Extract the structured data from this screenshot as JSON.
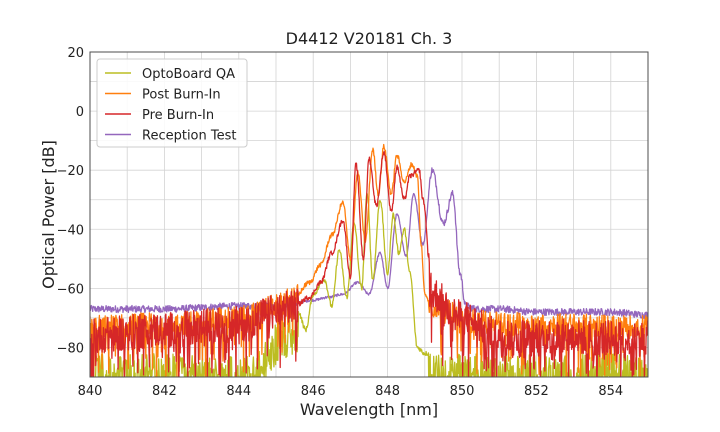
{
  "chart_data": {
    "type": "line",
    "title": "D4412 V20181 Ch. 3",
    "xlabel": "Wavelength [nm]",
    "ylabel": "Optical Power [dB]",
    "xlim": [
      840,
      855
    ],
    "ylim": [
      -90,
      20
    ],
    "xticks": [
      840,
      842,
      844,
      846,
      848,
      850,
      852,
      854
    ],
    "yticks": [
      20,
      0,
      -20,
      -40,
      -60,
      -80
    ],
    "xtick_labels": [
      "840",
      "842",
      "844",
      "846",
      "848",
      "850",
      "852",
      "854"
    ],
    "ytick_labels": [
      "20",
      "0",
      "−20",
      "−40",
      "−60",
      "−80"
    ],
    "grid": true,
    "legend_position": "top-left",
    "series": [
      {
        "name": "OptoBoard QA",
        "color": "#bcbd22",
        "noise_floor": -80,
        "peaks": [
          [
            845.8,
            -70
          ],
          [
            846.3,
            -57
          ],
          [
            846.7,
            -47
          ],
          [
            847.1,
            -38
          ],
          [
            847.45,
            -28
          ],
          [
            847.8,
            -30
          ],
          [
            848.15,
            -35
          ],
          [
            848.45,
            -40
          ]
        ],
        "x": [
          840,
          844.3,
          845.2,
          845.6,
          845.8,
          846.0,
          846.3,
          846.5,
          846.7,
          846.9,
          847.1,
          847.3,
          847.45,
          847.6,
          847.8,
          848.0,
          848.15,
          848.3,
          848.45,
          848.6,
          848.8,
          849.0,
          855
        ],
        "y": [
          -82,
          -82,
          -70,
          -68,
          -74,
          -62,
          -57,
          -66,
          -47,
          -63,
          -38,
          -60,
          -28,
          -57,
          -30,
          -55,
          -35,
          -48,
          -40,
          -55,
          -80,
          -82,
          -82
        ]
      },
      {
        "name": "Post Burn-In",
        "color": "#ff7f0e",
        "x": [
          840,
          842,
          844,
          845,
          845.5,
          845.9,
          846.2,
          846.5,
          846.8,
          847.0,
          847.2,
          847.4,
          847.6,
          847.75,
          847.9,
          848.1,
          848.25,
          848.45,
          848.65,
          848.8,
          848.9,
          849.0,
          849.2,
          849.6,
          850.2,
          851,
          855
        ],
        "y": [
          -73,
          -72,
          -70,
          -66,
          -63,
          -58,
          -52,
          -42,
          -31,
          -50,
          -21,
          -44,
          -13,
          -28,
          -12,
          -28,
          -15,
          -24,
          -18,
          -22,
          -45,
          -62,
          -66,
          -68,
          -71,
          -72,
          -73
        ]
      },
      {
        "name": "Pre Burn-In",
        "color": "#d62728",
        "x": [
          840,
          842,
          844,
          845,
          845.5,
          845.9,
          846.2,
          846.5,
          846.8,
          847.0,
          847.15,
          847.35,
          847.5,
          847.7,
          847.9,
          848.1,
          848.25,
          848.45,
          848.6,
          848.85,
          848.95,
          849.2,
          850,
          851,
          855
        ],
        "y": [
          -76,
          -74,
          -72,
          -68,
          -66,
          -63,
          -58,
          -48,
          -37,
          -56,
          -18,
          -50,
          -16,
          -32,
          -14,
          -34,
          -19,
          -30,
          -22,
          -20,
          -30,
          -62,
          -70,
          -76,
          -77
        ]
      },
      {
        "name": "Reception Test",
        "color": "#9467bd",
        "x": [
          840,
          842,
          844,
          845,
          845.5,
          846.0,
          846.4,
          846.8,
          847.2,
          847.5,
          847.8,
          848.0,
          848.25,
          848.5,
          848.7,
          848.95,
          849.2,
          849.5,
          849.75,
          849.95,
          850.1,
          850.4,
          851,
          852,
          853,
          854,
          855
        ],
        "y": [
          -67,
          -67,
          -66,
          -66,
          -65,
          -64,
          -63,
          -62,
          -58,
          -62,
          -48,
          -60,
          -35,
          -49,
          -28,
          -45,
          -20,
          -38,
          -28,
          -55,
          -66,
          -67,
          -67,
          -68,
          -68,
          -68,
          -69
        ]
      }
    ]
  },
  "colors": {
    "grid": "#d3d3d3",
    "axes": "#4d4d4d",
    "background": "#ffffff"
  }
}
